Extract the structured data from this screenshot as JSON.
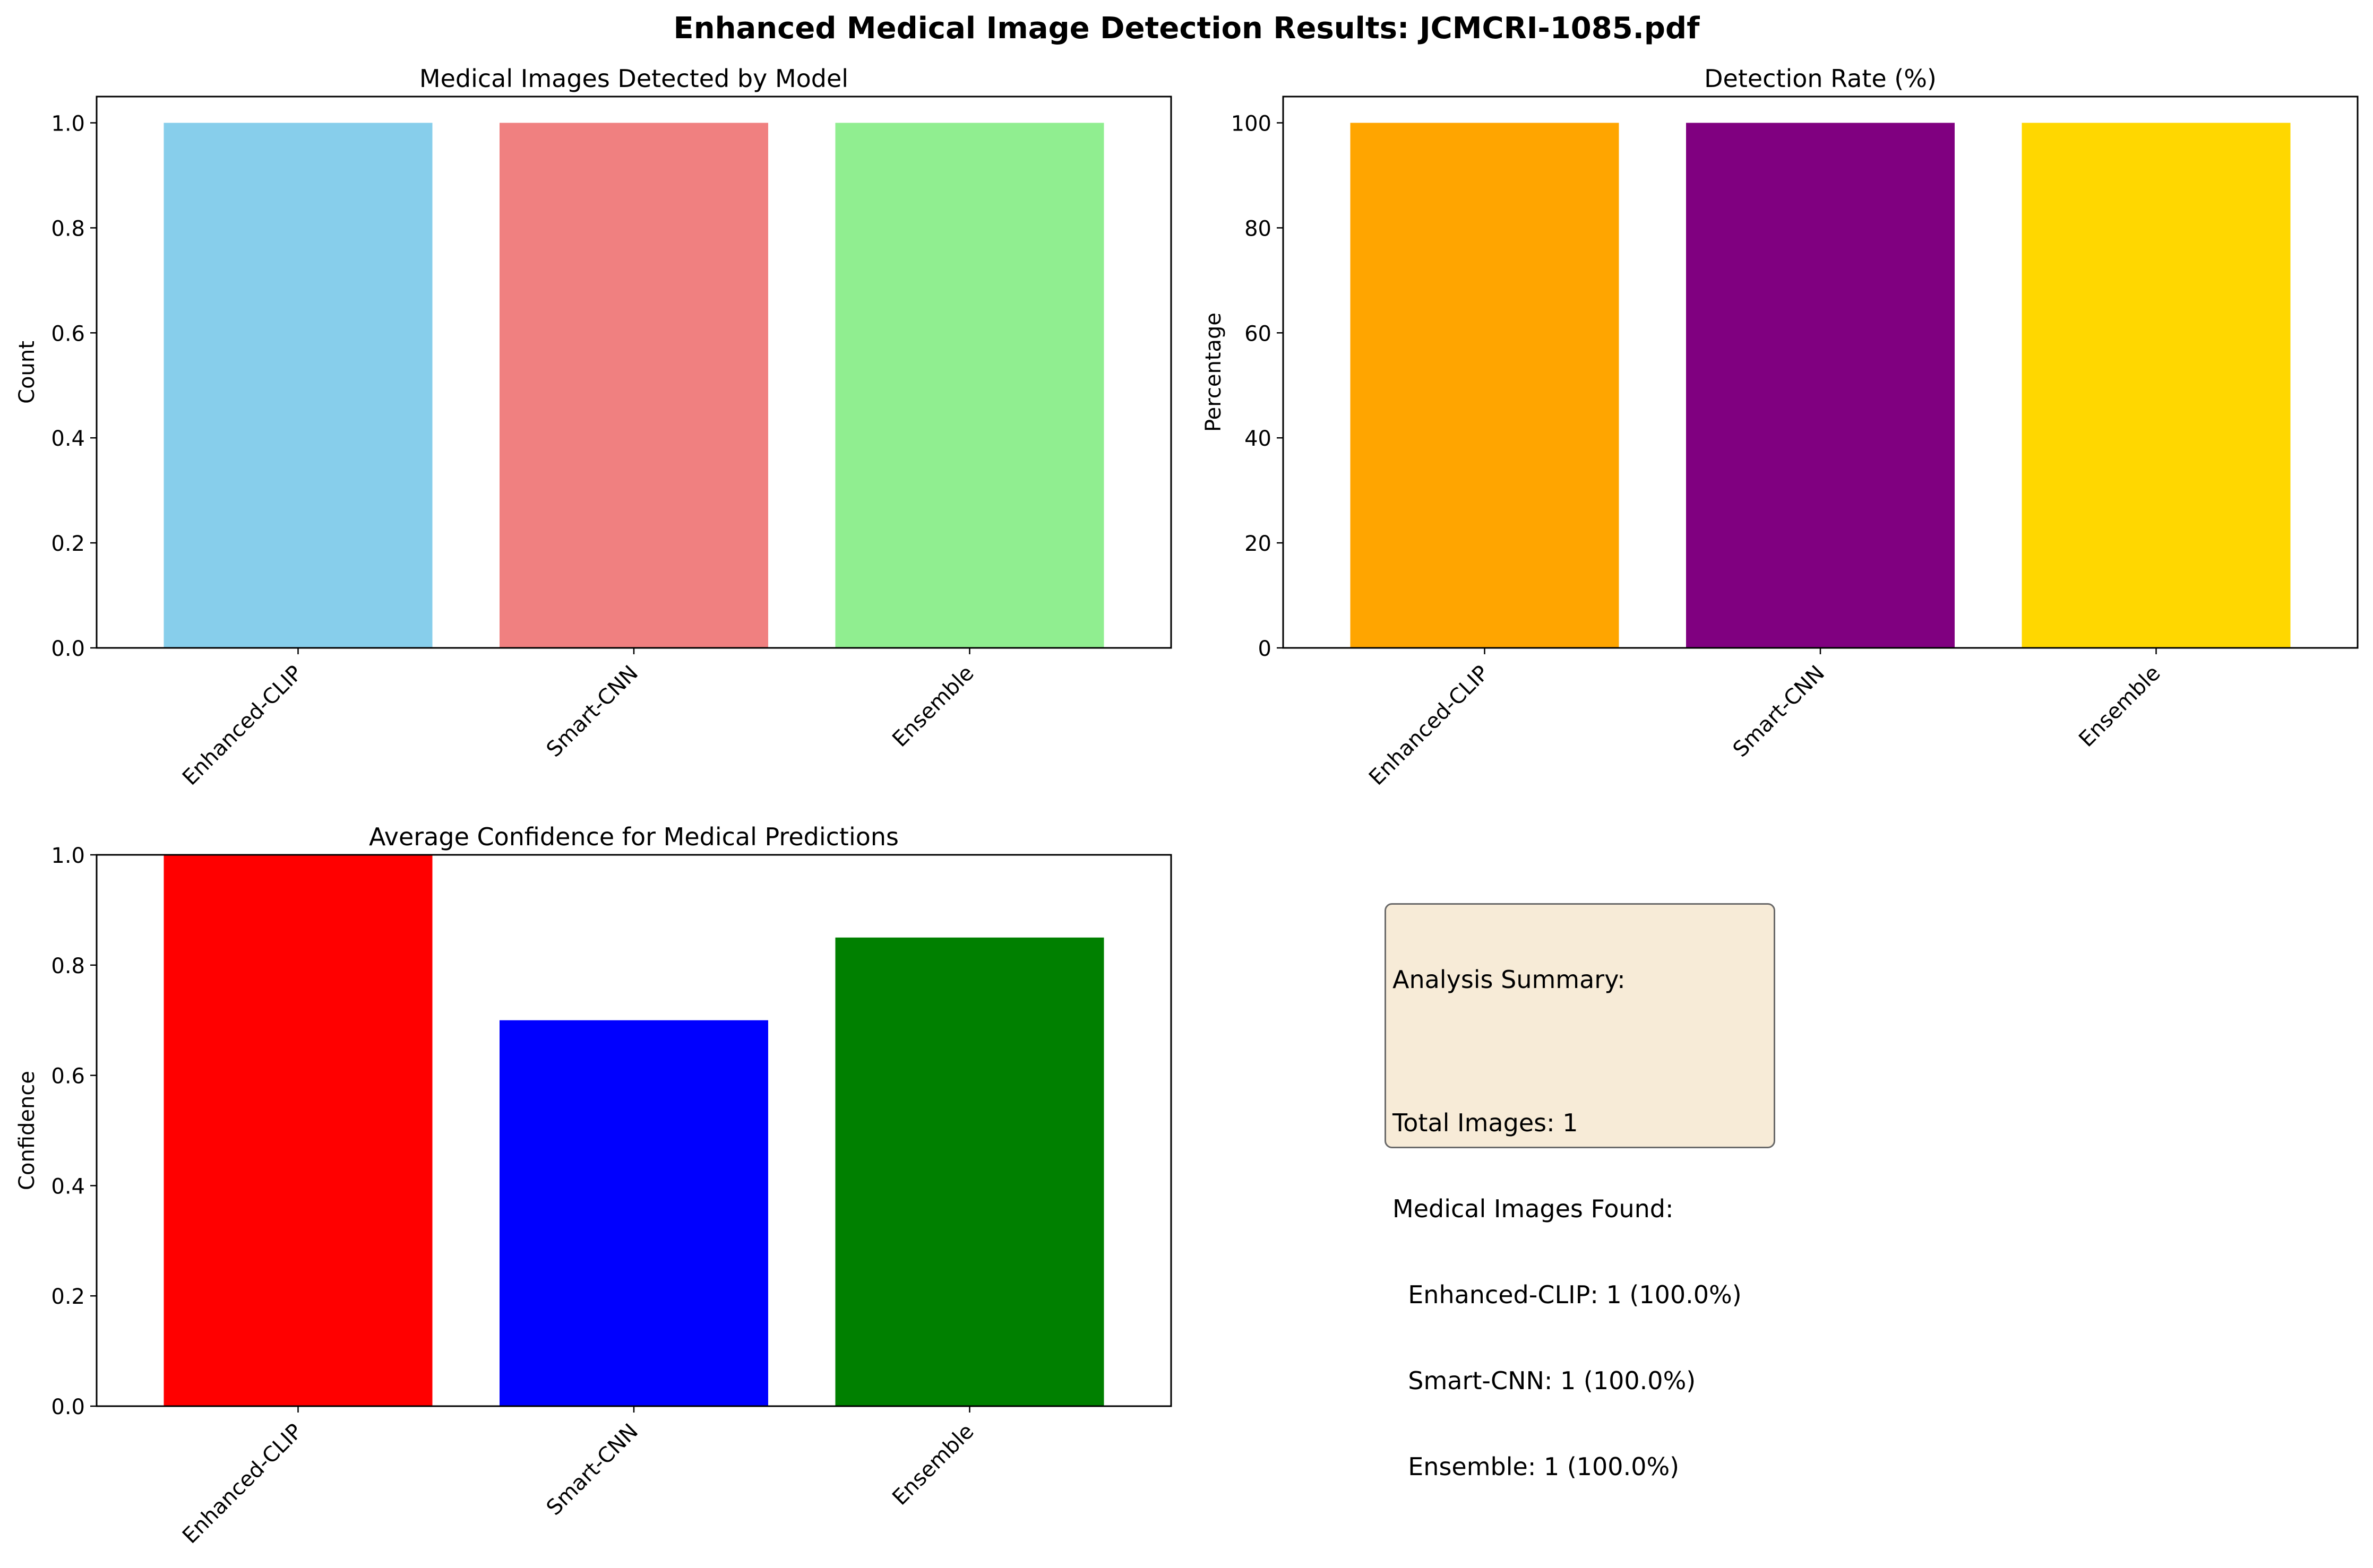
{
  "figure": {
    "title": "Enhanced Medical Image Detection Results: JCMCRI-1085.pdf"
  },
  "chart_data": [
    {
      "type": "bar",
      "title": "Medical Images Detected by Model",
      "categories": [
        "Enhanced-CLIP",
        "Smart-CNN",
        "Ensemble"
      ],
      "values": [
        1,
        1,
        1
      ],
      "colors": [
        "#87CEEB",
        "#F08080",
        "#90EE90"
      ],
      "xlabel": "",
      "ylabel": "Count",
      "ylim": [
        0,
        1.05
      ],
      "yticks": [
        0.0,
        0.2,
        0.4,
        0.6,
        0.8,
        1.0
      ],
      "ytick_labels": [
        "0.0",
        "0.2",
        "0.4",
        "0.6",
        "0.8",
        "1.0"
      ],
      "grid": false
    },
    {
      "type": "bar",
      "title": "Detection Rate (%)",
      "categories": [
        "Enhanced-CLIP",
        "Smart-CNN",
        "Ensemble"
      ],
      "values": [
        100,
        100,
        100
      ],
      "colors": [
        "#FFA500",
        "#800080",
        "#FFD700"
      ],
      "xlabel": "",
      "ylabel": "Percentage",
      "ylim": [
        0,
        105
      ],
      "yticks": [
        0,
        20,
        40,
        60,
        80,
        100
      ],
      "ytick_labels": [
        "0",
        "20",
        "40",
        "60",
        "80",
        "100"
      ],
      "grid": false
    },
    {
      "type": "bar",
      "title": "Average Confidence for Medical Predictions",
      "categories": [
        "Enhanced-CLIP",
        "Smart-CNN",
        "Ensemble"
      ],
      "values": [
        1.0,
        0.7,
        0.85
      ],
      "colors": [
        "#FF0000",
        "#0000FF",
        "#008000"
      ],
      "xlabel": "",
      "ylabel": "Confidence",
      "ylim": [
        0,
        1.0
      ],
      "yticks": [
        0.0,
        0.2,
        0.4,
        0.6,
        0.8,
        1.0
      ],
      "ytick_labels": [
        "0.0",
        "0.2",
        "0.4",
        "0.6",
        "0.8",
        "1.0"
      ],
      "grid": false
    }
  ],
  "summary": {
    "lines": [
      "Analysis Summary:",
      "",
      "Total Images: 1",
      "Medical Images Found:",
      "  Enhanced-CLIP: 1 (100.0%)",
      "  Smart-CNN: 1 (100.0%)",
      "  Ensemble: 1 (100.0%)"
    ],
    "background": "#F5DEB3"
  }
}
